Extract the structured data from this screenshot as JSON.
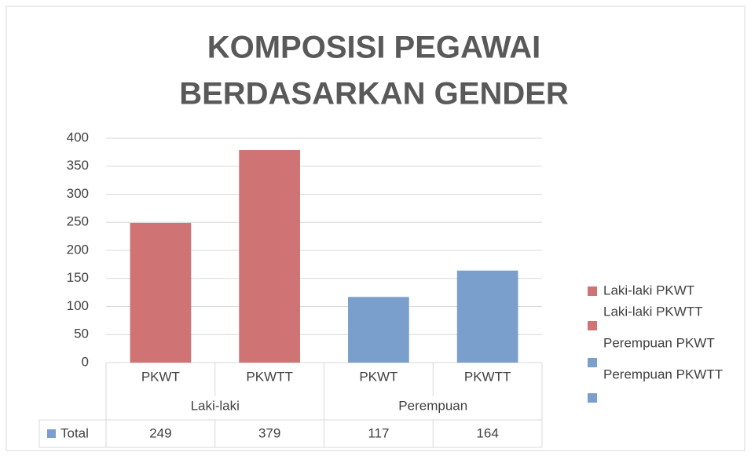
{
  "chart_data": {
    "type": "bar",
    "title": [
      "KOMPOSISI PEGAWAI",
      "BERDASARKAN GENDER"
    ],
    "groups": [
      {
        "name": "Laki-laki",
        "categories": [
          "PKWT",
          "PKWTT"
        ],
        "values": [
          249,
          379
        ],
        "color": "#cf7374"
      },
      {
        "name": "Perempuan",
        "categories": [
          "PKWT",
          "PKWTT"
        ],
        "values": [
          117,
          164
        ],
        "color": "#7a9fcc"
      }
    ],
    "ylim": [
      0,
      400
    ],
    "yticks": [
      0,
      50,
      100,
      150,
      200,
      250,
      300,
      350,
      400
    ],
    "grid": true,
    "legend": [
      {
        "name": "Laki-laki PKWT",
        "color": "#cf7374"
      },
      {
        "name": "Laki-laki PKWTT",
        "color": "#cf7374"
      },
      {
        "name": "Perempuan PKWT",
        "color": "#7a9fcc"
      },
      {
        "name": "Perempuan PKWTT",
        "color": "#7a9fcc"
      }
    ],
    "data_table": {
      "row_label": "Total",
      "color": "#7a9fcc"
    }
  }
}
